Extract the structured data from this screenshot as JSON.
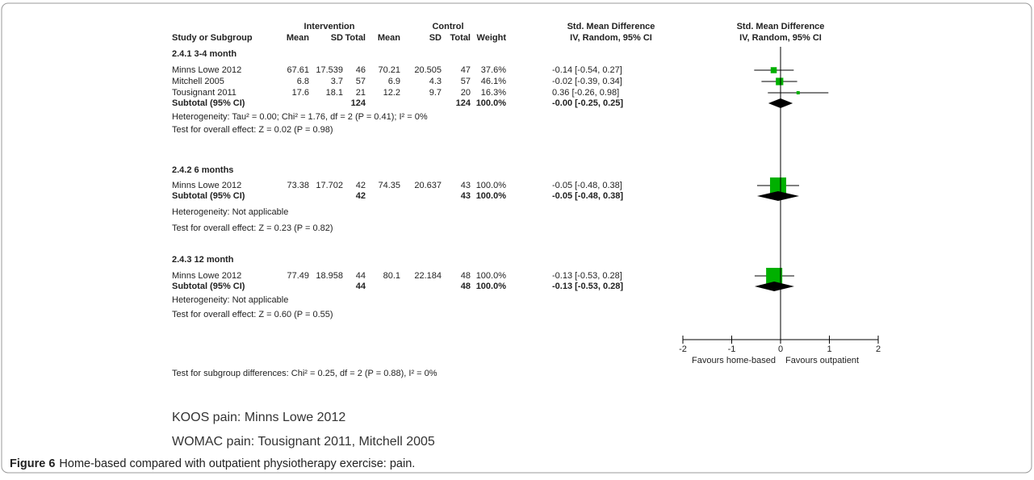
{
  "figure": {
    "header": {
      "group1": "Intervention",
      "group2": "Control",
      "effect_title": "Std. Mean Difference",
      "effect_method": "IV, Random, 95% CI",
      "plot_title": "Std. Mean Difference",
      "plot_method": "IV, Random, 95% CI"
    },
    "columns": [
      "Study or Subgroup",
      "Mean",
      "SD",
      "Total",
      "Mean",
      "SD",
      "Total",
      "Weight"
    ],
    "subgroups": [
      {
        "title": "2.4.1 3-4 month",
        "studies": [
          {
            "cells": [
              "Minns Lowe 2012",
              "67.61",
              "17.539",
              "46",
              "70.21",
              "20.505",
              "47"
            ],
            "weight": 37.6,
            "weight_label": "37.6%",
            "smd": -0.14,
            "ci": [
              -0.54,
              0.27
            ],
            "ci_label": "-0.14 [-0.54, 0.27]"
          },
          {
            "cells": [
              "Mitchell 2005",
              "6.8",
              "3.7",
              "57",
              "6.9",
              "4.3",
              "57"
            ],
            "weight": 46.1,
            "weight_label": "46.1%",
            "smd": -0.02,
            "ci": [
              -0.39,
              0.34
            ],
            "ci_label": "-0.02 [-0.39, 0.34]"
          },
          {
            "cells": [
              "Tousignant 2011",
              "17.6",
              "18.1",
              "21",
              "12.2",
              "9.7",
              "20"
            ],
            "weight": 16.3,
            "weight_label": "16.3%",
            "smd": 0.36,
            "ci": [
              -0.26,
              0.98
            ],
            "ci_label": "0.36 [-0.26, 0.98]"
          }
        ],
        "subtotal": {
          "cells": [
            "Subtotal (95% CI)",
            null,
            null,
            "124",
            null,
            null,
            "124"
          ],
          "weight_label": "100.0%",
          "smd": 0,
          "ci": [
            -0.25,
            0.25
          ],
          "ci_label": "-0.00 [-0.25, 0.25]"
        },
        "heterogeneity": "Heterogeneity: Tau² = 0.00; Chi² = 1.76, df = 2 (P = 0.41); I² = 0%",
        "overall": "Test for overall effect: Z = 0.02 (P = 0.98)"
      },
      {
        "title": "2.4.2 6 months",
        "studies": [
          {
            "cells": [
              "Minns Lowe 2012",
              "73.38",
              "17.702",
              "42",
              "74.35",
              "20.637",
              "43"
            ],
            "weight": 100,
            "weight_label": "100.0%",
            "smd": -0.05,
            "ci": [
              -0.48,
              0.38
            ],
            "ci_label": "-0.05 [-0.48, 0.38]"
          }
        ],
        "subtotal": {
          "cells": [
            "Subtotal (95% CI)",
            null,
            null,
            "42",
            null,
            null,
            "43"
          ],
          "weight_label": "100.0%",
          "smd": -0.05,
          "ci": [
            -0.48,
            0.38
          ],
          "ci_label": "-0.05 [-0.48, 0.38]"
        },
        "heterogeneity": "Heterogeneity: Not applicable",
        "overall": "Test for overall effect: Z = 0.23 (P = 0.82)"
      },
      {
        "title": "2.4.3 12 month",
        "studies": [
          {
            "cells": [
              "Minns Lowe 2012",
              "77.49",
              "18.958",
              "44",
              "80.1",
              "22.184",
              "48"
            ],
            "weight": 100,
            "weight_label": "100.0%",
            "smd": -0.13,
            "ci": [
              -0.53,
              0.28
            ],
            "ci_label": "-0.13 [-0.53, 0.28]"
          }
        ],
        "subtotal": {
          "cells": [
            "Subtotal (95% CI)",
            null,
            null,
            "44",
            null,
            null,
            "48"
          ],
          "weight_label": "100.0%",
          "smd": -0.13,
          "ci": [
            -0.53,
            0.28
          ],
          "ci_label": "-0.13 [-0.53, 0.28]"
        },
        "heterogeneity": "Heterogeneity: Not applicable",
        "overall": "Test for overall effect: Z = 0.60 (P = 0.55)"
      }
    ],
    "axis": {
      "xlim": [
        -2,
        2
      ],
      "xticks": [
        -2,
        -1,
        0,
        1,
        2
      ],
      "left_label": "Favours home-based",
      "right_label": "Favours outpatient"
    },
    "footer": "Test for subgroup differences: Chi² = 0.25, df = 2 (P = 0.88), I² = 0%",
    "notes": [
      "KOOS pain: Minns Lowe 2012",
      "WOMAC pain: Tousignant 2011, Mitchell 2005"
    ],
    "caption": {
      "label": "Figure 6",
      "text": "Home-based compared with outpatient physiotherapy exercise: pain."
    }
  }
}
